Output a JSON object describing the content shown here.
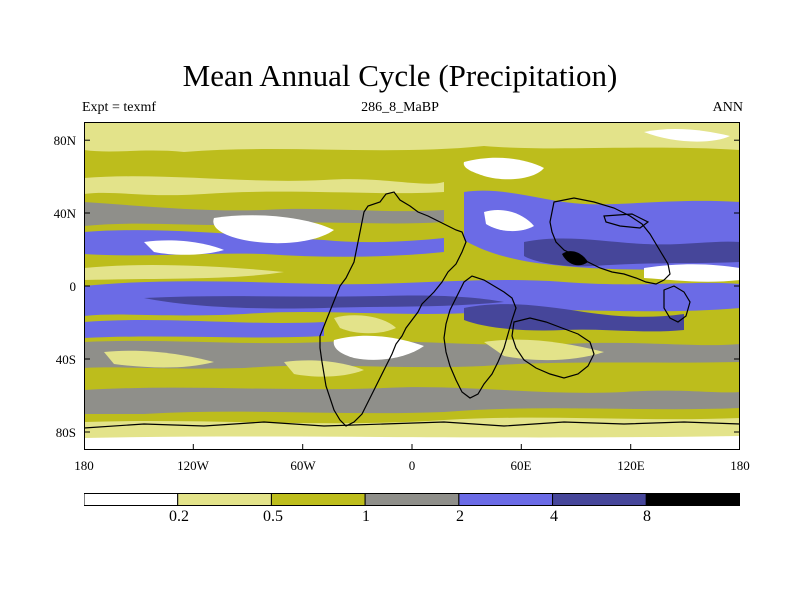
{
  "title": "Mean Annual Cycle (Precipitation)",
  "subtitle_left": "Expt = texmf",
  "subtitle_center": "286_8_MaBP",
  "subtitle_right": "ANN",
  "lat_labels": [
    "80N",
    "40N",
    "0",
    "40S",
    "80S"
  ],
  "lon_labels": [
    "180",
    "120W",
    "60W",
    "0",
    "60E",
    "120E",
    "180"
  ],
  "colorbar": {
    "levels": [
      "0.2",
      "0.5",
      "1",
      "2",
      "4",
      "8"
    ],
    "colors": [
      "#ffffff",
      "#e3e38a",
      "#bdbd1c",
      "#8f8f8a",
      "#6b6be6",
      "#46469a",
      "#000000"
    ]
  }
}
